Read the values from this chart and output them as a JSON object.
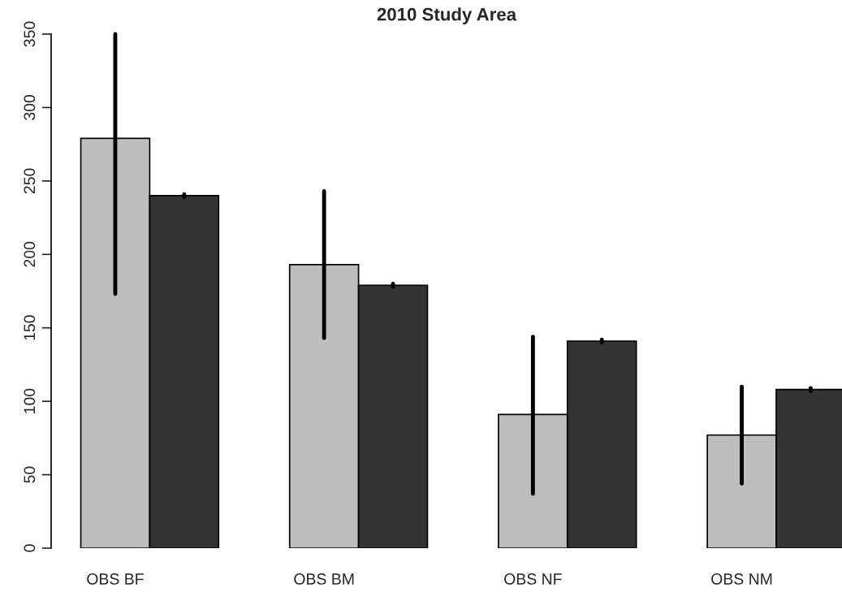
{
  "chart_data": {
    "type": "bar",
    "title": "2010 Study Area",
    "categories": [
      "OBS BF",
      "OBS BM",
      "OBS NF",
      "OBS NM"
    ],
    "series": [
      {
        "color": "#bebebe",
        "values": [
          279,
          193,
          91,
          77
        ],
        "errors": [
          [
            173,
            350
          ],
          [
            143,
            243
          ],
          [
            37,
            144
          ],
          [
            44,
            110
          ]
        ]
      },
      {
        "color": "#333333",
        "values": [
          240,
          179,
          141,
          108
        ],
        "errors": [
          1,
          1,
          1,
          1
        ]
      }
    ],
    "ylim": [
      0,
      350
    ],
    "yticks": [
      0,
      50,
      100,
      150,
      200,
      250,
      300,
      350
    ],
    "grid": false
  }
}
